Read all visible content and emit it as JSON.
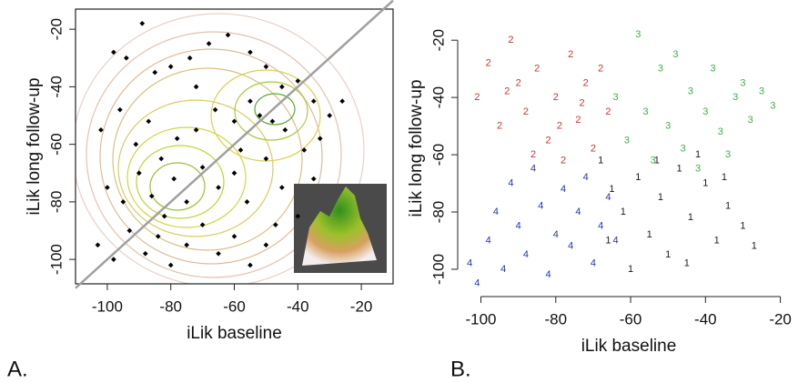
{
  "chart_data": [
    {
      "type": "scatter",
      "panel_label": "A.",
      "xlabel": "iLik baseline",
      "ylabel": "iLik long follow-up",
      "xlim": [
        -110,
        -10
      ],
      "ylim": [
        -108.5,
        -13
      ],
      "xticks": [
        -100,
        -80,
        -60,
        -40,
        -20
      ],
      "yticks": [
        -100,
        -80,
        -60,
        -40,
        -20
      ],
      "box": true,
      "diagonal_line": true,
      "diagonal_color": "#a0a0a0",
      "color": "#000000",
      "x": [
        -98,
        -94,
        -89,
        -85,
        -80,
        -74,
        -68,
        -62,
        -55,
        -50,
        -45,
        -40,
        -35,
        -30,
        -26,
        -102,
        -96,
        -91,
        -87,
        -83,
        -78,
        -72,
        -66,
        -60,
        -55,
        -52,
        -48,
        -44,
        -38,
        -33,
        -100,
        -95,
        -90,
        -86,
        -82,
        -79,
        -75,
        -70,
        -65,
        -60,
        -56,
        -50,
        -45,
        -40,
        -35,
        -103,
        -98,
        -93,
        -88,
        -84,
        -80,
        -75,
        -70,
        -65,
        -60,
        -55,
        -50,
        -72,
        -58,
        -47
      ],
      "values": [
        -28,
        -30,
        -18,
        -35,
        -33,
        -30,
        -25,
        -22,
        -28,
        -33,
        -40,
        -38,
        -45,
        -50,
        -45,
        -55,
        -48,
        -60,
        -52,
        -65,
        -58,
        -55,
        -48,
        -52,
        -45,
        -50,
        -52,
        -55,
        -62,
        -58,
        -75,
        -80,
        -70,
        -78,
        -85,
        -72,
        -80,
        -68,
        -75,
        -70,
        -80,
        -65,
        -75,
        -85,
        -72,
        -95,
        -100,
        -90,
        -98,
        -92,
        -102,
        -95,
        -88,
        -98,
        -92,
        -102,
        -95,
        -40,
        -62,
        -88
      ]
    },
    {
      "type": "text_scatter",
      "panel_label": "B.",
      "xlabel": "iLik baseline",
      "ylabel": "iLik long follow-up",
      "xlim": [
        -104.5,
        -16.5
      ],
      "ylim": [
        -107,
        -8.5
      ],
      "xticks": [
        -100,
        -80,
        -60,
        -40,
        -20
      ],
      "yticks": [
        -100,
        -80,
        -60,
        -40,
        -20
      ],
      "box": false,
      "series": [
        {
          "name": "1",
          "color": "#1a1a1a",
          "x": [
            -68,
            -65,
            -62,
            -58,
            -55,
            -52,
            -50,
            -47,
            -44,
            -40,
            -37,
            -34,
            -30,
            -27,
            -60,
            -53,
            -45,
            -66,
            -42,
            -35
          ],
          "values": [
            -62,
            -72,
            -80,
            -68,
            -88,
            -75,
            -95,
            -65,
            -82,
            -70,
            -90,
            -78,
            -85,
            -92,
            -100,
            -62,
            -98,
            -90,
            -60,
            -68
          ]
        },
        {
          "name": "2",
          "color": "#cc3333",
          "x": [
            -101,
            -98,
            -95,
            -92,
            -90,
            -88,
            -85,
            -82,
            -80,
            -78,
            -76,
            -74,
            -72,
            -70,
            -68,
            -66,
            -86,
            -93,
            -79,
            -73
          ],
          "values": [
            -40,
            -28,
            -50,
            -20,
            -35,
            -45,
            -30,
            -55,
            -40,
            -62,
            -25,
            -48,
            -35,
            -58,
            -30,
            -45,
            -60,
            -38,
            -50,
            -42
          ]
        },
        {
          "name": "3",
          "color": "#3cb043",
          "x": [
            -64,
            -61,
            -58,
            -56,
            -54,
            -52,
            -50,
            -48,
            -46,
            -44,
            -42,
            -40,
            -38,
            -36,
            -34,
            -32,
            -30,
            -28,
            -25,
            -22
          ],
          "values": [
            -40,
            -55,
            -18,
            -45,
            -62,
            -30,
            -50,
            -25,
            -58,
            -38,
            -65,
            -45,
            -30,
            -52,
            -60,
            -40,
            -35,
            -48,
            -38,
            -43
          ]
        },
        {
          "name": "4",
          "color": "#2233bb",
          "x": [
            -103,
            -101,
            -98,
            -96,
            -94,
            -92,
            -90,
            -88,
            -86,
            -84,
            -82,
            -80,
            -78,
            -76,
            -74,
            -72,
            -70,
            -68,
            -66,
            -64
          ],
          "values": [
            -98,
            -105,
            -90,
            -80,
            -100,
            -70,
            -85,
            -95,
            -65,
            -78,
            -102,
            -88,
            -72,
            -92,
            -80,
            -68,
            -98,
            -85,
            -75,
            -90
          ]
        }
      ]
    }
  ]
}
